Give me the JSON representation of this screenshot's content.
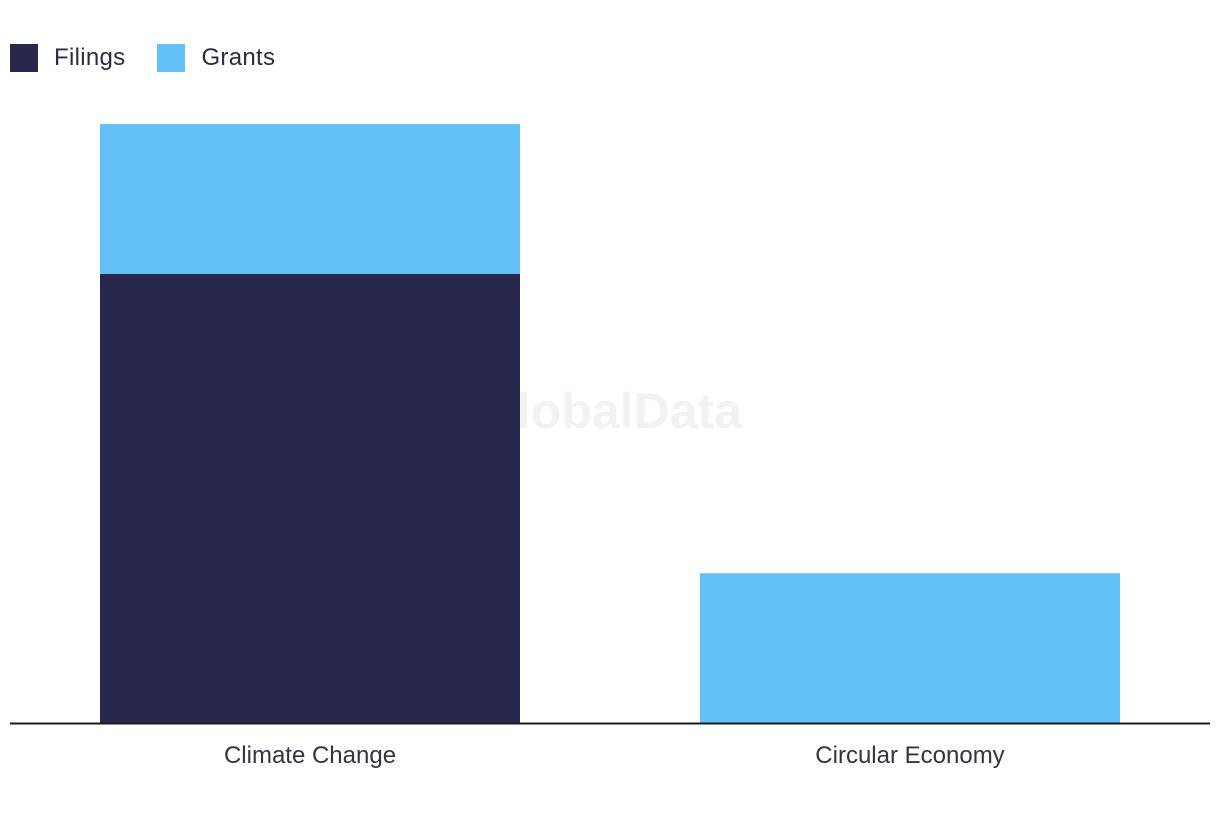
{
  "legend": {
    "items": [
      {
        "label": "Filings",
        "color": "#27284b"
      },
      {
        "label": "Grants",
        "color": "#63c1f8"
      }
    ]
  },
  "watermark": "GlobalData",
  "chart_data": {
    "type": "bar",
    "stacked": true,
    "categories": [
      "Climate Change",
      "Circular Economy"
    ],
    "series": [
      {
        "name": "Filings",
        "values": [
          3,
          0
        ],
        "color": "#27284b"
      },
      {
        "name": "Grants",
        "values": [
          1,
          1
        ],
        "color": "#63c1f8"
      }
    ],
    "ylim": [
      0,
      4
    ],
    "legend_position": "top-left",
    "grid": false
  }
}
